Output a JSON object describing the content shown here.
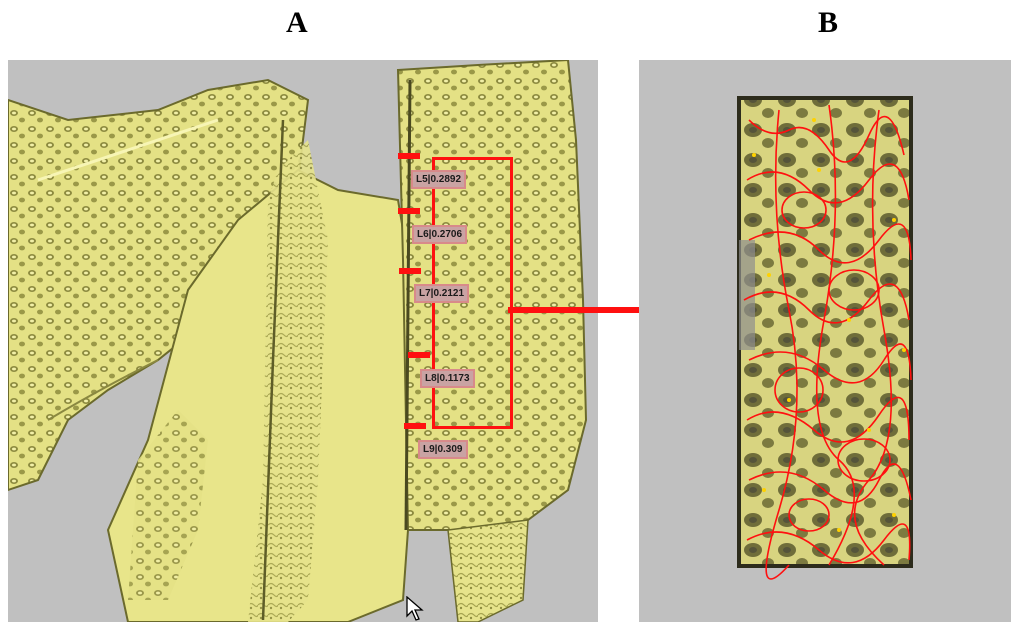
{
  "panels": {
    "a": {
      "letter": "A",
      "measurements": [
        {
          "label": "L5|0.2892"
        },
        {
          "label": "L6|0.2706"
        },
        {
          "label": "L7|0.2121"
        },
        {
          "label": "L8|0.1173"
        },
        {
          "label": "L9|0.309"
        }
      ]
    },
    "b": {
      "letter": "B"
    }
  },
  "colors": {
    "background": "#c0c0c0",
    "bone": "#e8e58a",
    "bone_shadow": "#8c8a3a",
    "highlight": "#ff1010",
    "label_fill": "#c9a3a3"
  },
  "icons": [
    "arrow-cursor-icon",
    "right-arrow-icon"
  ]
}
